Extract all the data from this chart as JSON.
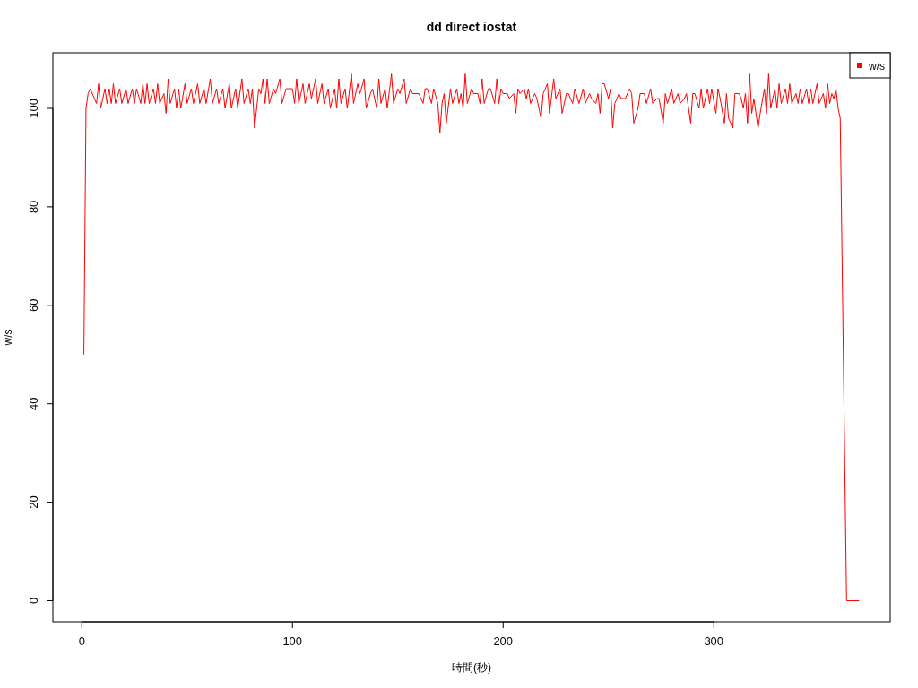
{
  "chart_data": {
    "type": "line",
    "title": "dd direct iostat",
    "xlabel": "時間(秒)",
    "ylabel": "w/s",
    "xlim": [
      -13.72,
      383.72
    ],
    "ylim": [
      -4.28,
      111.28
    ],
    "xticks": [
      0,
      100,
      200,
      300
    ],
    "yticks": [
      0,
      20,
      40,
      60,
      80,
      100
    ],
    "grid": false,
    "legend": "top right",
    "marker": "none",
    "line_style": "solid",
    "series": [
      {
        "name": "w/s",
        "color": "#ff0000",
        "x": [
          1,
          2,
          3,
          4,
          6,
          7,
          8,
          9,
          11,
          12,
          13,
          14,
          15,
          16,
          18,
          19,
          21,
          22,
          24,
          25,
          26,
          28,
          29,
          30,
          31,
          32,
          34,
          35,
          36,
          37,
          39,
          40,
          41,
          42,
          44,
          45,
          46,
          47,
          49,
          50,
          52,
          53,
          55,
          56,
          58,
          59,
          61,
          62,
          64,
          65,
          67,
          68,
          70,
          71,
          73,
          74,
          76,
          77,
          79,
          80,
          81,
          82,
          84,
          85,
          86,
          87,
          88,
          89,
          91,
          92,
          94,
          95,
          97,
          98,
          100,
          101,
          102,
          103,
          105,
          106,
          108,
          109,
          111,
          112,
          114,
          115,
          117,
          118,
          120,
          121,
          122,
          123,
          125,
          126,
          128,
          129,
          131,
          132,
          134,
          135,
          137,
          138,
          140,
          141,
          142,
          144,
          145,
          147,
          148,
          150,
          151,
          153,
          154,
          156,
          157,
          159,
          160,
          162,
          163,
          164,
          166,
          167,
          169,
          170,
          171,
          172,
          173,
          175,
          176,
          178,
          179,
          180,
          181,
          182,
          183,
          185,
          186,
          188,
          189,
          190,
          191,
          193,
          194,
          196,
          197,
          198,
          199,
          200,
          202,
          203,
          205,
          206,
          207,
          208,
          210,
          211,
          212,
          213,
          215,
          216,
          218,
          219,
          221,
          222,
          224,
          225,
          227,
          228,
          230,
          231,
          233,
          234,
          236,
          238,
          239,
          241,
          242,
          244,
          245,
          246,
          247,
          248,
          250,
          251,
          252,
          253,
          255,
          256,
          258,
          260,
          261,
          262,
          264,
          265,
          267,
          268,
          270,
          271,
          273,
          274,
          276,
          277,
          278,
          280,
          281,
          283,
          284,
          286,
          287,
          289,
          290,
          291,
          293,
          294,
          295,
          297,
          298,
          299,
          301,
          302,
          303,
          305,
          306,
          307,
          309,
          310,
          312,
          313,
          314,
          315,
          316,
          317,
          318,
          319,
          321,
          322,
          324,
          325,
          326,
          327,
          329,
          330,
          331,
          332,
          334,
          335,
          336,
          337,
          339,
          340,
          341,
          342,
          344,
          345,
          346,
          347,
          349,
          350,
          352,
          353,
          354,
          355,
          356,
          357,
          358,
          359,
          360,
          363,
          369
        ],
        "values": [
          50,
          100,
          103,
          104,
          102,
          101,
          105,
          100,
          104,
          101,
          104,
          101,
          105,
          101,
          104,
          101,
          104,
          101,
          104,
          101,
          104,
          101,
          105,
          101,
          105,
          101,
          104,
          101,
          105,
          101,
          103,
          99,
          106,
          101,
          104,
          100,
          104,
          100,
          105,
          101,
          104,
          101,
          105,
          101,
          104,
          101,
          106,
          101,
          104,
          101,
          104,
          100,
          105,
          100,
          104,
          100,
          106,
          101,
          104,
          101,
          104,
          96,
          104,
          103,
          106,
          101,
          106,
          101,
          104,
          103,
          106,
          101,
          104,
          104,
          104,
          101,
          106,
          101,
          105,
          101,
          105,
          102,
          106,
          101,
          105,
          101,
          104,
          100,
          104,
          100,
          106,
          101,
          104,
          100,
          107,
          101,
          105,
          103,
          106,
          100,
          103,
          104,
          100,
          106,
          101,
          104,
          100,
          107,
          101,
          104,
          103,
          106,
          101,
          104,
          103,
          103,
          103,
          101,
          104,
          104,
          101,
          104,
          101,
          95,
          101,
          103,
          97,
          104,
          101,
          104,
          101,
          103,
          100,
          107,
          101,
          104,
          103,
          103,
          101,
          106,
          101,
          104,
          104,
          101,
          106,
          101,
          104,
          103,
          103,
          102,
          103,
          99,
          104,
          103,
          104,
          102,
          104,
          101,
          103,
          102,
          98,
          103,
          105,
          99,
          106,
          102,
          104,
          99,
          103,
          103,
          101,
          104,
          101,
          104,
          101,
          103,
          102,
          101,
          103,
          99,
          105,
          105,
          102,
          104,
          96,
          101,
          103,
          102,
          102,
          104,
          103,
          97,
          100,
          103,
          103,
          101,
          104,
          101,
          102,
          102,
          97,
          103,
          101,
          104,
          101,
          103,
          101,
          102,
          103,
          97,
          103,
          103,
          100,
          104,
          100,
          104,
          101,
          104,
          99,
          104,
          102,
          97,
          103,
          98,
          96,
          103,
          103,
          102,
          100,
          103,
          97,
          107,
          99,
          102,
          96,
          99,
          104,
          99,
          107,
          100,
          104,
          100,
          105,
          101,
          104,
          101,
          105,
          101,
          103,
          101,
          104,
          101,
          104,
          101,
          104,
          101,
          105,
          101,
          103,
          100,
          105,
          101,
          103,
          102,
          104,
          100,
          98,
          0,
          0
        ]
      }
    ]
  }
}
